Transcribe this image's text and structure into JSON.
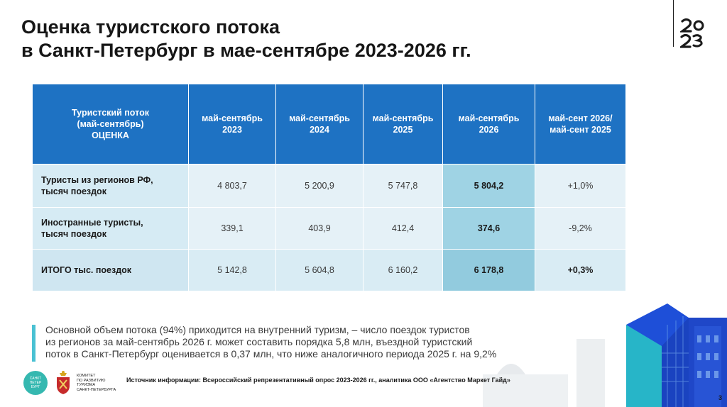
{
  "title": {
    "line1": "Оценка туристского потока",
    "line2": "в Санкт-Петербург в мае-сентябре 2023-2026 гг."
  },
  "table": {
    "header": {
      "first_line1": "Туристский поток",
      "first_line2": "(май-сентябрь)",
      "first_line3": "ОЦЕНКА",
      "col1": "май-сентябрь 2023",
      "col2": "май-сентябрь 2024",
      "col3": "май-сентябрь 2025",
      "col4": "май-сентябрь 2026",
      "col5": "май-сент 2026/ май-сент 2025"
    },
    "rows": [
      {
        "label_line1": "Туристы из регионов РФ,",
        "label_line2": "тысяч поездок",
        "v2023": "4 803,7",
        "v2024": "5 200,9",
        "v2025": "5 747,8",
        "v2026": "5 804,2",
        "change": "+1,0%"
      },
      {
        "label_line1": "Иностранные туристы,",
        "label_line2": "тысяч поездок",
        "v2023": "339,1",
        "v2024": "403,9",
        "v2025": "412,4",
        "v2026": "374,6",
        "change": "-9,2%"
      },
      {
        "label_line1": "ИТОГО тыс. поездок",
        "label_line2": "",
        "v2023": "5 142,8",
        "v2024": "5 604,8",
        "v2025": "6 160,2",
        "v2026": "6 178,8",
        "change": "+0,3%"
      }
    ]
  },
  "note": {
    "line1": "Основной объем потока (94%) приходится на внутренний туризм, – число поездок туристов",
    "line2": "из регионов за май-сентябрь 2026 г. может составить порядка 5,8 млн, въездной туристский",
    "line3": "поток в Санкт-Петербург оценивается в 0,37 млн, что ниже аналогичного периода 2025 г. на 9,2%"
  },
  "footer": {
    "source": "Источник информации: Всероссийский репрезентативный опрос 2023-2026 гг., аналитика ООО «Агентство Маркет Гайд»",
    "spb_logo_line1": "САНКТ",
    "spb_logo_line2": "ПЕТЕР",
    "spb_logo_line3": "БУРГ",
    "committee_line1": "КОМИТЕТ",
    "committee_line2": "ПО РАЗВИТИЮ",
    "committee_line3": "ТУРИЗМА",
    "committee_line4": "САНКТ-ПЕТЕРБУРГА",
    "page_number": "3"
  },
  "colors": {
    "header_blue": "#1e72c3",
    "row_light": "#e5f1f7",
    "highlight": "#9fd3e4",
    "accent_teal": "#4ac1d3"
  },
  "icons": {
    "brand_logo": "logo-2023-icon",
    "city_emblem": "coat-of-arms-icon"
  }
}
